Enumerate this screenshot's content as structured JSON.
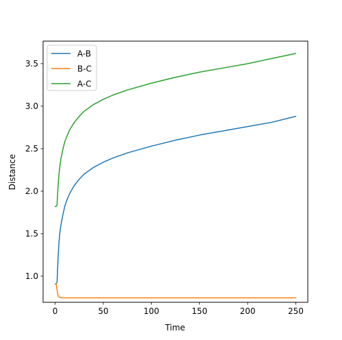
{
  "chart_data": {
    "type": "line",
    "title": "",
    "xlabel": "Time",
    "ylabel": "Distance",
    "xlim": [
      -12.5,
      262.5
    ],
    "ylim": [
      0.693,
      3.765
    ],
    "xticks": [
      0,
      50,
      100,
      150,
      200,
      250
    ],
    "xtick_labels": [
      "0",
      "50",
      "100",
      "150",
      "200",
      "250"
    ],
    "yticks": [
      1.0,
      1.5,
      2.0,
      2.5,
      3.0,
      3.5
    ],
    "ytick_labels": [
      "1.0",
      "1.5",
      "2.0",
      "2.5",
      "3.0",
      "3.5"
    ],
    "grid": false,
    "legend_position": "top-left",
    "x": [
      0,
      1,
      2,
      3,
      4,
      5,
      6,
      8,
      10,
      12,
      15,
      20,
      25,
      30,
      40,
      50,
      60,
      75,
      100,
      125,
      150,
      175,
      200,
      225,
      250
    ],
    "series": [
      {
        "name": "A-B",
        "color": "#1f77b4",
        "values": [
          0.91,
          0.91,
          0.93,
          1.2,
          1.4,
          1.52,
          1.6,
          1.72,
          1.82,
          1.89,
          1.97,
          2.07,
          2.14,
          2.2,
          2.28,
          2.34,
          2.39,
          2.45,
          2.53,
          2.6,
          2.66,
          2.71,
          2.76,
          2.81,
          2.88
        ]
      },
      {
        "name": "B-C",
        "color": "#ff7f0e",
        "values": [
          0.91,
          0.91,
          0.84,
          0.77,
          0.755,
          0.75,
          0.747,
          0.745,
          0.745,
          0.745,
          0.745,
          0.745,
          0.745,
          0.745,
          0.745,
          0.745,
          0.745,
          0.745,
          0.745,
          0.745,
          0.745,
          0.745,
          0.745,
          0.745,
          0.745
        ]
      },
      {
        "name": "A-C",
        "color": "#2ca02c",
        "values": [
          1.82,
          1.82,
          1.84,
          2.05,
          2.2,
          2.3,
          2.38,
          2.49,
          2.58,
          2.64,
          2.72,
          2.81,
          2.88,
          2.94,
          3.02,
          3.08,
          3.13,
          3.19,
          3.27,
          3.34,
          3.4,
          3.45,
          3.5,
          3.56,
          3.62
        ]
      }
    ]
  }
}
